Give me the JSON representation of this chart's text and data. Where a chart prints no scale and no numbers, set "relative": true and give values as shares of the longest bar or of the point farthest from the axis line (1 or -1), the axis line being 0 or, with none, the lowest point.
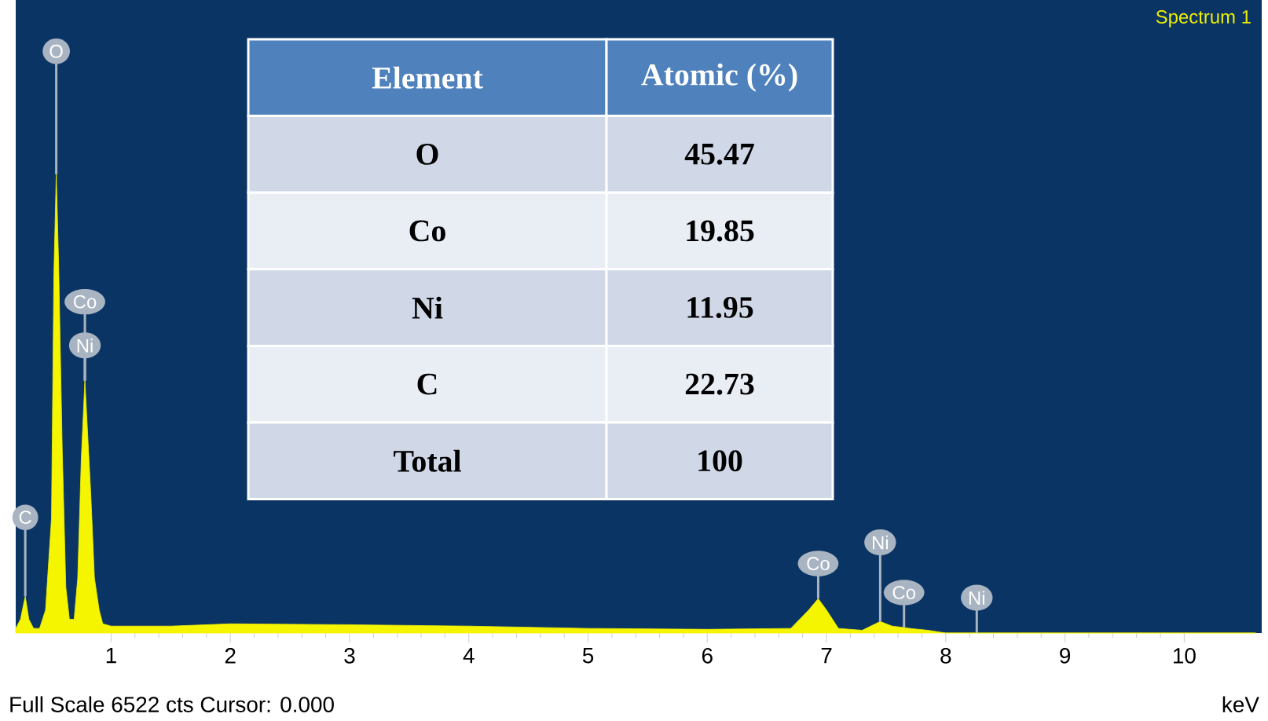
{
  "chart_data": {
    "type": "area",
    "relative": true,
    "title": "Spectrum 1",
    "xlabel": "keV",
    "x": [
      0.2,
      0.24,
      0.28,
      0.31,
      0.35,
      0.4,
      0.45,
      0.5,
      0.52,
      0.54,
      0.56,
      0.59,
      0.62,
      0.65,
      0.69,
      0.72,
      0.75,
      0.78,
      0.8,
      0.83,
      0.86,
      0.9,
      0.93,
      1.0,
      1.5,
      2.0,
      3.0,
      4.0,
      5.0,
      6.0,
      6.7,
      6.85,
      6.93,
      7.0,
      7.1,
      7.3,
      7.45,
      7.55,
      7.65,
      7.7,
      7.85,
      8.0,
      8.26,
      10.6
    ],
    "series": [
      {
        "color": "#f5f500",
        "values": [
          0.01,
          0.03,
          0.08,
          0.03,
          0.01,
          0.01,
          0.05,
          0.25,
          0.78,
          1.0,
          0.8,
          0.4,
          0.1,
          0.03,
          0.03,
          0.12,
          0.38,
          0.55,
          0.45,
          0.3,
          0.12,
          0.05,
          0.02,
          0.015,
          0.015,
          0.02,
          0.018,
          0.015,
          0.01,
          0.008,
          0.01,
          0.05,
          0.075,
          0.05,
          0.01,
          0.006,
          0.025,
          0.015,
          0.012,
          0.01,
          0.006,
          0.0,
          0.0,
          0.0
        ]
      }
    ],
    "xlim": [
      0.2,
      10.65
    ],
    "xticks": [
      1,
      2,
      3,
      4,
      5,
      6,
      7,
      8,
      9,
      10
    ],
    "annotations": [
      {
        "text": "C",
        "x": 0.28,
        "y": 0.08
      },
      {
        "text": "O",
        "x": 0.54,
        "y": 1.0
      },
      {
        "text": "Co",
        "x": 0.78,
        "y": 0.55
      },
      {
        "text": "Ni",
        "x": 0.78,
        "y": 0.55
      },
      {
        "text": "Co",
        "x": 6.93,
        "y": 0.075
      },
      {
        "text": "Ni",
        "x": 7.45,
        "y": 0.025
      },
      {
        "text": "Co",
        "x": 7.65,
        "y": 0.012
      },
      {
        "text": "Ni",
        "x": 8.26,
        "y": 0.0
      },
      "Element",
      "Atomic (%)",
      "O",
      "45.47",
      "Co",
      "19.85",
      "Ni",
      "11.95",
      "C",
      "22.73",
      "Total",
      "100",
      "Full Scale 6522 cts Cursor: 0.000"
    ]
  }
}
